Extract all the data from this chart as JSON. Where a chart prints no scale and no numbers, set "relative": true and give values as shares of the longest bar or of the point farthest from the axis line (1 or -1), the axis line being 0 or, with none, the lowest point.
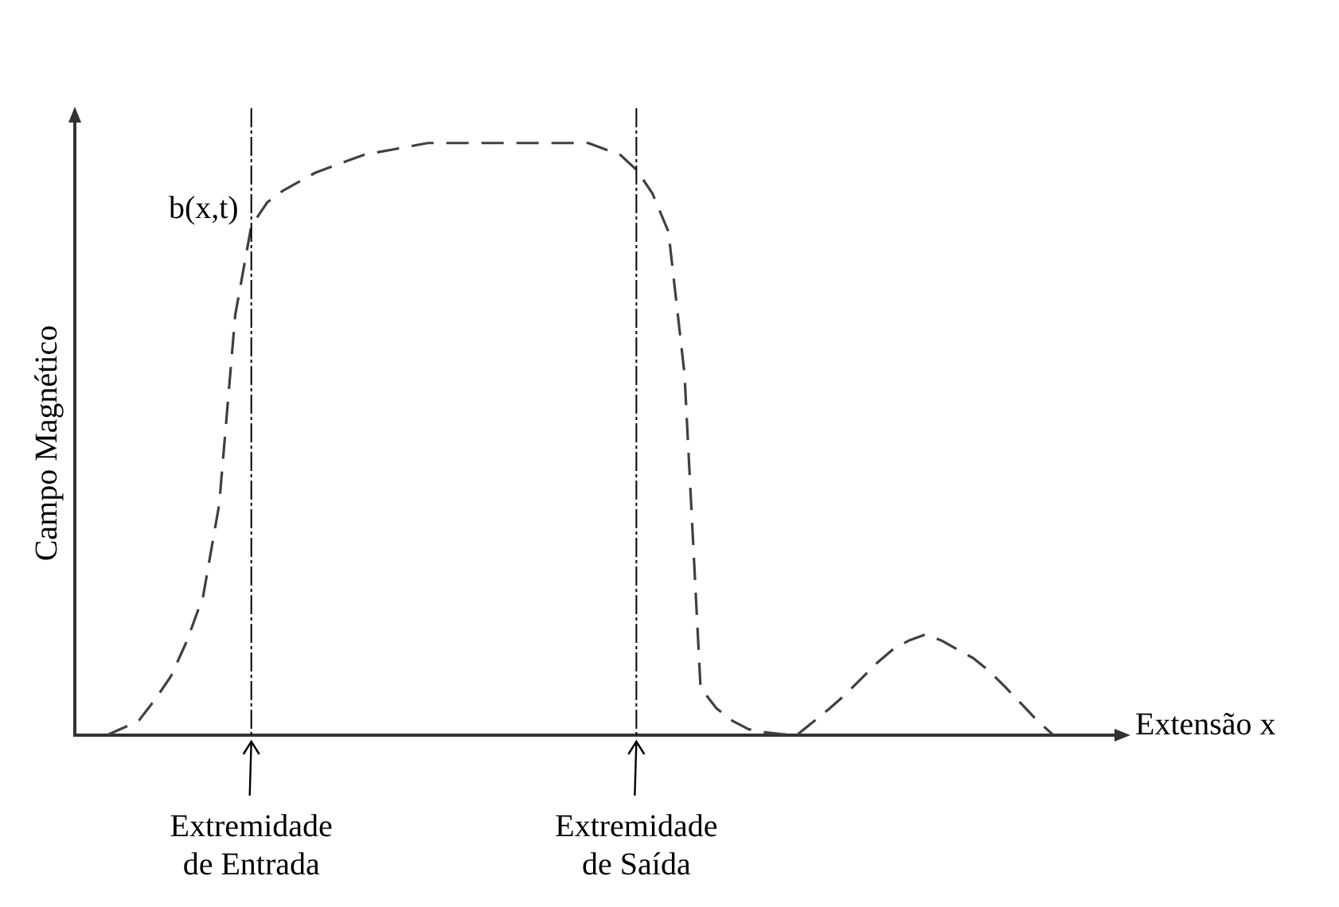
{
  "chart_data": {
    "type": "line",
    "xlabel": "Extensão x",
    "ylabel": "Campo Magnético",
    "relative": true,
    "tick_labels": "x",
    "grid": false,
    "legend": false,
    "marker": "none",
    "line_style": "dashed",
    "categories": [
      null,
      null,
      null,
      null,
      null,
      null,
      null,
      null,
      null,
      null,
      null,
      "Extremidade de Entrada",
      null,
      null,
      null,
      null,
      null,
      null,
      null,
      null,
      null,
      null,
      null,
      null,
      null,
      null,
      null,
      null,
      null,
      null,
      null,
      null,
      null,
      null,
      null,
      "Extremidade de Saída",
      null,
      null,
      null,
      null,
      null,
      null,
      null,
      null,
      null,
      null,
      null,
      null,
      null,
      null,
      null,
      null,
      null,
      null,
      null,
      null,
      null,
      null,
      null,
      null,
      null,
      null,
      null,
      null,
      null,
      null
    ],
    "series": [
      {
        "name": "b(x,t)",
        "color": "#404040",
        "values": [
          null,
          null,
          0,
          0.012,
          0.025,
          0.06,
          0.1,
          0.16,
          0.235,
          0.39,
          0.71,
          0.86,
          0.9,
          0.92,
          0.935,
          0.95,
          0.96,
          0.97,
          0.98,
          0.985,
          0.99,
          0.995,
          1.0,
          1.0,
          1.0,
          1.0,
          1.0,
          1.0,
          1.0,
          1.0,
          1.0,
          1.0,
          1.0,
          0.99,
          0.98,
          0.955,
          0.915,
          0.85,
          0.61,
          0.08,
          0.045,
          0.024,
          0.01,
          0.005,
          0.002,
          0,
          0.022,
          0.044,
          0.068,
          0.095,
          0.122,
          0.145,
          0.16,
          0.17,
          0.16,
          0.145,
          0.13,
          0.108,
          0.081,
          0.053,
          0.024,
          0,
          null,
          null,
          null,
          null
        ]
      }
    ],
    "ref_lines": [
      {
        "axis": "x",
        "value": "Extremidade de Entrada",
        "color": "#000000",
        "line_style": "dashed"
      },
      {
        "axis": "x",
        "value": "Extremidade de Saída",
        "color": "#000000",
        "line_style": "dashed"
      }
    ]
  }
}
